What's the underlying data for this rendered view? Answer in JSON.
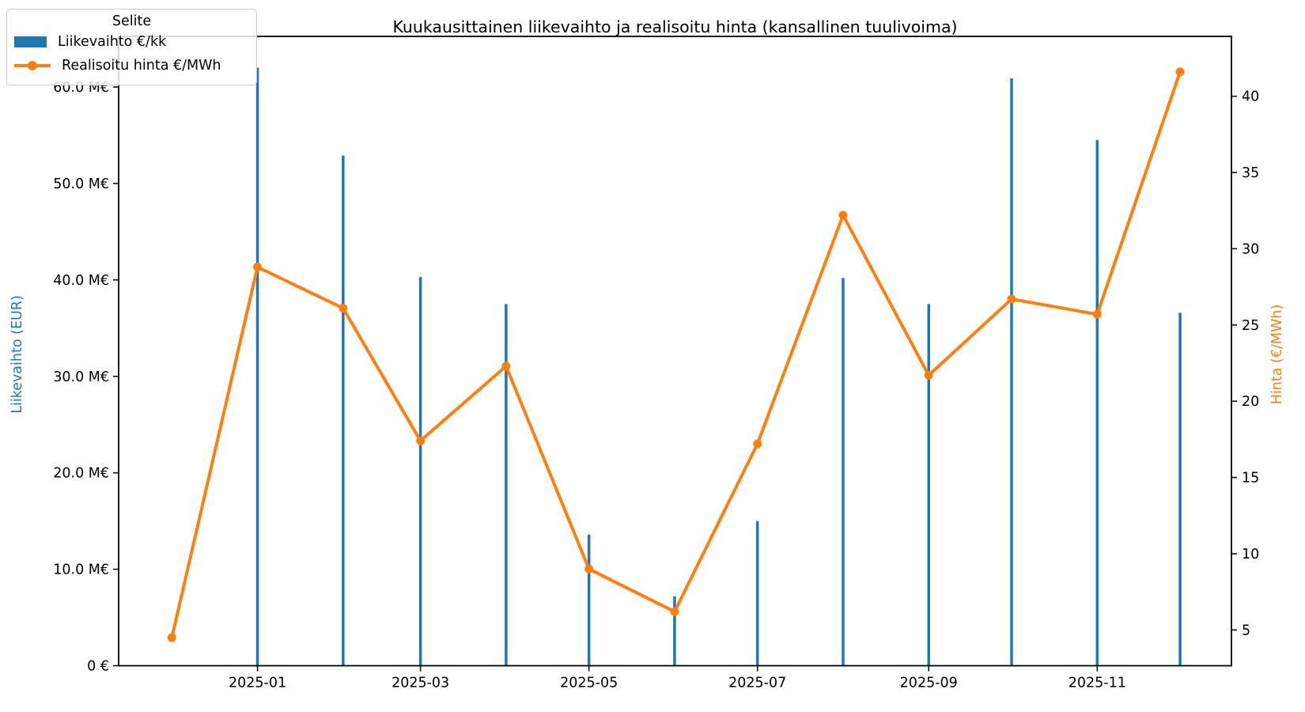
{
  "title": "Kuukausittainen liikevaihto ja realisoitu hinta (kansallinen tuulivoima)",
  "legend": {
    "title": "Selite",
    "entries": [
      {
        "label": "Liikevaihto €/kk",
        "type": "bar",
        "color": "#1f77b4"
      },
      {
        "label": "Realisoitu hinta €/MWh",
        "type": "line",
        "color": "#ff7f0e"
      }
    ]
  },
  "axes": {
    "left": {
      "label": "Liikevaihto (EUR)",
      "color": "#1f77b4",
      "tick_values": [
        0,
        10,
        20,
        30,
        40,
        50,
        60
      ],
      "tick_labels": [
        "0 €",
        "10.0 M€",
        "20.0 M€",
        "30.0 M€",
        "40.0 M€",
        "50.0 M€",
        "60.0 M€"
      ],
      "range": [
        0,
        65.2
      ]
    },
    "right": {
      "label": "Hinta (€/MWh)",
      "color": "#ff7f0e",
      "tick_values": [
        5,
        10,
        15,
        20,
        25,
        30,
        35,
        40
      ],
      "tick_labels": [
        "5",
        "10",
        "15",
        "20",
        "25",
        "30",
        "35",
        "40"
      ],
      "range": [
        2.65,
        43.9
      ]
    },
    "x": {
      "tick_months": [
        "2025-01",
        "2025-03",
        "2025-05",
        "2025-07",
        "2025-09",
        "2025-11"
      ],
      "tick_labels": [
        "2025-01",
        "2025-03",
        "2025-05",
        "2025-07",
        "2025-09",
        "2025-11"
      ]
    }
  },
  "chart_data": {
    "type": "combo",
    "x_type": "date-monthly",
    "x": [
      "2024-12",
      "2025-01",
      "2025-02",
      "2025-03",
      "2025-04",
      "2025-05",
      "2025-06",
      "2025-07",
      "2025-08",
      "2025-09",
      "2025-10",
      "2025-11",
      "2025-12"
    ],
    "series": [
      {
        "name": "Liikevaihto €/kk",
        "type": "bar",
        "axis": "left",
        "unit": "M€",
        "color": "#1f77b4",
        "values": [
          null,
          62.0,
          52.9,
          40.3,
          37.5,
          13.6,
          7.2,
          15.0,
          40.2,
          37.5,
          60.9,
          54.5,
          36.6
        ]
      },
      {
        "name": "Realisoitu hinta €/MWh",
        "type": "line",
        "axis": "right",
        "unit": "€/MWh",
        "color": "#ff7f0e",
        "values": [
          4.5,
          28.8,
          26.1,
          17.4,
          22.3,
          9.0,
          6.2,
          17.2,
          32.2,
          21.7,
          26.7,
          25.7,
          41.6
        ]
      }
    ],
    "title": "Kuukausittainen liikevaihto ja realisoitu hinta (kansallinen tuulivoima)",
    "grid": false,
    "legend_position": "upper-left"
  }
}
